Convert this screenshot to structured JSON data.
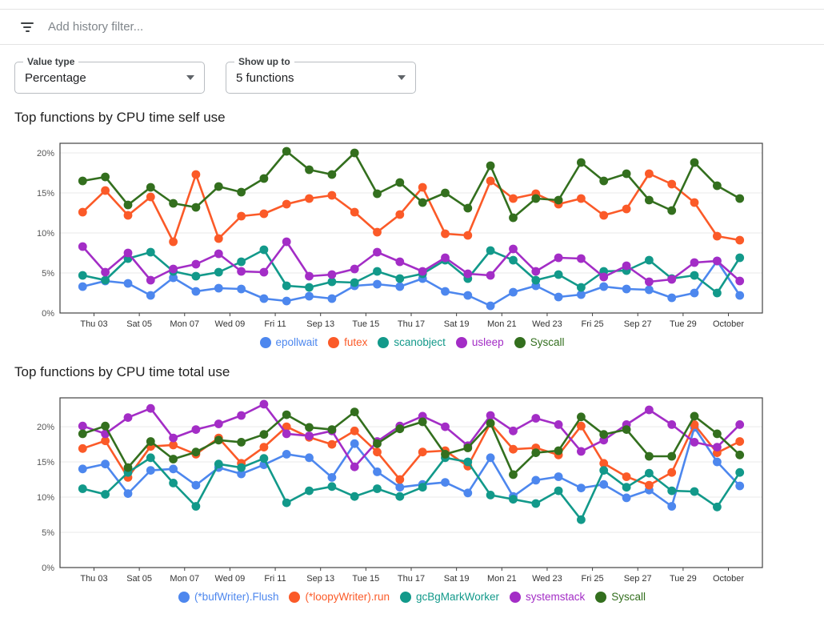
{
  "header": {
    "filter_placeholder": "Add history filter...",
    "filter_icon": "filter-list-icon"
  },
  "controls": {
    "value_type": {
      "label": "Value type",
      "value": "Percentage"
    },
    "show_up_to": {
      "label": "Show up to",
      "value": "5 functions"
    }
  },
  "chart_data": [
    {
      "type": "line",
      "title": "Top functions by CPU time self use",
      "x_tick_labels": [
        "Thu 03",
        "Sat 05",
        "Mon 07",
        "Wed 09",
        "Fri 11",
        "Sep 13",
        "Tue 15",
        "Thu 17",
        "Sat 19",
        "Mon 21",
        "Wed 23",
        "Fri 25",
        "Sep 27",
        "Tue 29",
        "October"
      ],
      "y_tick_labels": [
        "0%",
        "5%",
        "10%",
        "15%",
        "20%"
      ],
      "ylabel": "",
      "xlabel": "",
      "ylim": [
        0,
        21.2
      ],
      "grid": true,
      "legend_position": "bottom",
      "num_points": 30,
      "series": [
        {
          "name": "epollwait",
          "color": "#4d87ee",
          "values": [
            3.3,
            4.0,
            3.7,
            2.2,
            4.4,
            2.7,
            3.1,
            3.0,
            1.8,
            1.5,
            2.1,
            1.8,
            3.4,
            3.6,
            3.3,
            4.3,
            2.7,
            2.2,
            0.9,
            2.6,
            3.4,
            2.0,
            2.3,
            3.3,
            3.0,
            2.9,
            1.9,
            2.5,
            6.5,
            2.2
          ]
        },
        {
          "name": "futex",
          "color": "#fb5a28",
          "values": [
            12.6,
            15.3,
            12.2,
            14.5,
            8.9,
            17.3,
            9.3,
            12.1,
            12.4,
            13.6,
            14.3,
            14.7,
            12.6,
            10.1,
            12.3,
            15.7,
            9.9,
            9.7,
            16.5,
            14.3,
            14.9,
            13.6,
            14.3,
            12.2,
            13.0,
            17.4,
            16.1,
            13.8,
            9.6,
            9.1
          ]
        },
        {
          "name": "scanobject",
          "color": "#12998a",
          "values": [
            4.7,
            4.1,
            6.8,
            7.6,
            5.2,
            4.6,
            5.1,
            6.4,
            7.9,
            3.4,
            3.2,
            3.9,
            3.8,
            5.2,
            4.3,
            4.9,
            6.6,
            4.3,
            7.8,
            6.6,
            4.1,
            4.8,
            3.2,
            5.2,
            5.3,
            6.6,
            4.3,
            4.7,
            2.5,
            6.9
          ]
        },
        {
          "name": "usleep",
          "color": "#a32dc6",
          "values": [
            8.3,
            5.1,
            7.5,
            4.1,
            5.5,
            6.1,
            7.4,
            5.2,
            5.1,
            8.9,
            4.6,
            4.8,
            5.5,
            7.6,
            6.4,
            5.2,
            6.9,
            4.9,
            4.7,
            8.0,
            5.2,
            6.9,
            6.8,
            4.5,
            5.9,
            3.9,
            4.2,
            6.3,
            6.5,
            4.0
          ]
        },
        {
          "name": "Syscall",
          "color": "#336f1e",
          "values": [
            16.5,
            17.0,
            13.5,
            15.7,
            13.7,
            13.2,
            15.8,
            15.1,
            16.8,
            20.2,
            17.9,
            17.3,
            20.0,
            14.9,
            16.3,
            13.8,
            15.0,
            13.1,
            18.4,
            11.9,
            14.3,
            14.1,
            18.8,
            16.5,
            17.4,
            14.1,
            12.8,
            18.8,
            15.9,
            14.3
          ]
        }
      ]
    },
    {
      "type": "line",
      "title": "Top functions by CPU time total use",
      "x_tick_labels": [
        "Thu 03",
        "Sat 05",
        "Mon 07",
        "Wed 09",
        "Fri 11",
        "Sep 13",
        "Tue 15",
        "Thu 17",
        "Sat 19",
        "Mon 21",
        "Wed 23",
        "Fri 25",
        "Sep 27",
        "Tue 29",
        "October"
      ],
      "y_tick_labels": [
        "0%",
        "5%",
        "10%",
        "15%",
        "20%"
      ],
      "ylabel": "",
      "xlabel": "",
      "ylim": [
        0,
        24.1
      ],
      "grid": true,
      "legend_position": "bottom",
      "num_points": 30,
      "series": [
        {
          "name": "(*bufWriter).Flush",
          "color": "#4d87ee",
          "values": [
            14.0,
            14.7,
            10.5,
            13.8,
            14.0,
            11.7,
            14.2,
            13.3,
            14.6,
            16.1,
            15.6,
            12.8,
            17.6,
            13.6,
            11.4,
            11.8,
            12.1,
            10.6,
            15.6,
            10.1,
            12.4,
            12.9,
            11.3,
            11.8,
            9.9,
            11.0,
            8.7,
            19.9,
            15.0,
            11.6
          ]
        },
        {
          "name": "(*loopyWriter).run",
          "color": "#fb5a28",
          "values": [
            16.9,
            18.0,
            12.8,
            17.2,
            17.4,
            16.1,
            18.4,
            14.8,
            17.1,
            20.0,
            18.5,
            17.5,
            19.4,
            16.4,
            12.5,
            16.4,
            16.6,
            14.4,
            20.5,
            16.8,
            17.0,
            16.0,
            20.1,
            14.8,
            12.9,
            11.7,
            13.5,
            20.3,
            16.3,
            17.9
          ]
        },
        {
          "name": "gcBgMarkWorker",
          "color": "#12998a",
          "values": [
            11.2,
            10.4,
            13.5,
            15.6,
            12.0,
            8.7,
            14.7,
            14.2,
            15.5,
            9.2,
            10.9,
            11.5,
            10.1,
            11.2,
            10.1,
            11.4,
            15.6,
            15.0,
            10.3,
            9.7,
            9.1,
            10.9,
            6.8,
            13.8,
            11.4,
            13.4,
            10.9,
            10.8,
            8.6,
            13.5
          ]
        },
        {
          "name": "systemstack",
          "color": "#a32dc6",
          "values": [
            20.1,
            19.0,
            21.3,
            22.6,
            18.4,
            19.6,
            20.4,
            21.6,
            23.2,
            19.0,
            18.7,
            19.4,
            14.3,
            17.9,
            20.1,
            21.5,
            20.0,
            17.3,
            21.6,
            19.4,
            21.2,
            20.3,
            16.5,
            18.1,
            20.3,
            22.4,
            20.3,
            17.8,
            17.1,
            20.3
          ]
        },
        {
          "name": "Syscall",
          "color": "#336f1e",
          "values": [
            19.0,
            20.1,
            14.2,
            17.9,
            15.4,
            16.4,
            18.1,
            17.8,
            18.9,
            21.7,
            19.9,
            19.6,
            22.1,
            17.6,
            19.7,
            20.7,
            16.1,
            17.0,
            20.5,
            13.2,
            16.3,
            16.6,
            21.4,
            18.9,
            19.6,
            15.8,
            15.8,
            21.5,
            19.0,
            16.0
          ]
        }
      ]
    }
  ]
}
